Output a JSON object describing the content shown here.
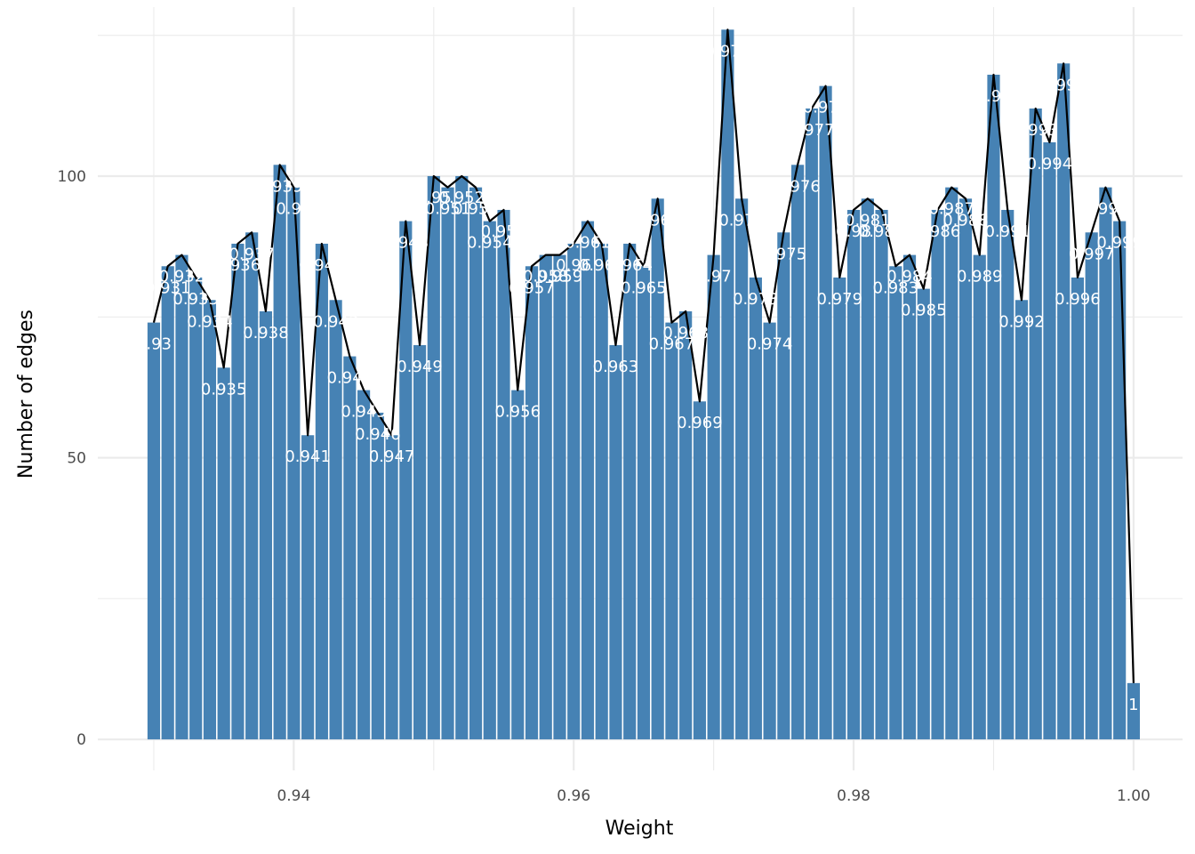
{
  "chart_data": {
    "type": "bar",
    "xlabel": "Weight",
    "ylabel": "Number of edges",
    "xlim": [
      0.926,
      1.0035
    ],
    "ylim": [
      -5.5,
      130
    ],
    "x_ticks": [
      0.94,
      0.96,
      0.98,
      1.0
    ],
    "x_tick_labels": [
      "0.94",
      "0.96",
      "0.98",
      "1.00"
    ],
    "y_ticks": [
      0,
      50,
      100
    ],
    "y_tick_labels": [
      "0",
      "50",
      "100"
    ],
    "grid": true,
    "bar_color": "#4682b4",
    "line_color": "#000000",
    "label_color": "#ffffff",
    "x": [
      0.93,
      0.931,
      0.932,
      0.933,
      0.934,
      0.935,
      0.936,
      0.937,
      0.938,
      0.939,
      0.94,
      0.941,
      0.942,
      0.943,
      0.944,
      0.945,
      0.946,
      0.947,
      0.948,
      0.949,
      0.95,
      0.951,
      0.952,
      0.953,
      0.954,
      0.955,
      0.956,
      0.957,
      0.958,
      0.959,
      0.96,
      0.961,
      0.962,
      0.963,
      0.964,
      0.965,
      0.966,
      0.967,
      0.968,
      0.969,
      0.97,
      0.971,
      0.972,
      0.973,
      0.974,
      0.975,
      0.976,
      0.977,
      0.978,
      0.979,
      0.98,
      0.981,
      0.982,
      0.983,
      0.984,
      0.985,
      0.986,
      0.987,
      0.988,
      0.989,
      0.99,
      0.991,
      0.992,
      0.993,
      0.994,
      0.995,
      0.996,
      0.997,
      0.998,
      0.999,
      1.0
    ],
    "values": [
      74,
      84,
      86,
      82,
      78,
      66,
      88,
      90,
      76,
      102,
      98,
      54,
      88,
      78,
      68,
      62,
      58,
      54,
      92,
      70,
      100,
      98,
      100,
      98,
      92,
      94,
      62,
      84,
      86,
      86,
      88,
      92,
      88,
      70,
      88,
      84,
      96,
      74,
      76,
      60,
      86,
      126,
      96,
      82,
      74,
      90,
      102,
      112,
      116,
      82,
      94,
      96,
      94,
      84,
      86,
      80,
      94,
      98,
      96,
      86,
      118,
      94,
      78,
      112,
      106,
      120,
      82,
      90,
      98,
      92,
      10
    ],
    "labels": [
      "0.93",
      "0.931",
      "0.932",
      "0.933",
      "0.934",
      "0.935",
      "0.936",
      "0.937",
      "0.938",
      "0.939",
      "0.94",
      "0.941",
      "0.942",
      "0.943",
      "0.944",
      "0.945",
      "0.946",
      "0.947",
      "0.948",
      "0.949",
      "0.95",
      "0.951",
      "0.952",
      "0.953",
      "0.954",
      "0.955",
      "0.956",
      "0.957",
      "0.958",
      "0.959",
      "0.96",
      "0.961",
      "0.962",
      "0.963",
      "0.964",
      "0.965",
      "0.966",
      "0.967",
      "0.968",
      "0.969",
      "0.97",
      "0.971",
      "0.972",
      "0.973",
      "0.974",
      "0.975",
      "0.976",
      "0.977",
      "0.978",
      "0.979",
      "0.98",
      "0.981",
      "0.982",
      "0.983",
      "0.984",
      "0.985",
      "0.986",
      "0.987",
      "0.988",
      "0.989",
      "0.99",
      "0.991",
      "0.992",
      "0.993",
      "0.994",
      "0.995",
      "0.996",
      "0.997",
      "0.998",
      "0.999",
      "1"
    ]
  }
}
